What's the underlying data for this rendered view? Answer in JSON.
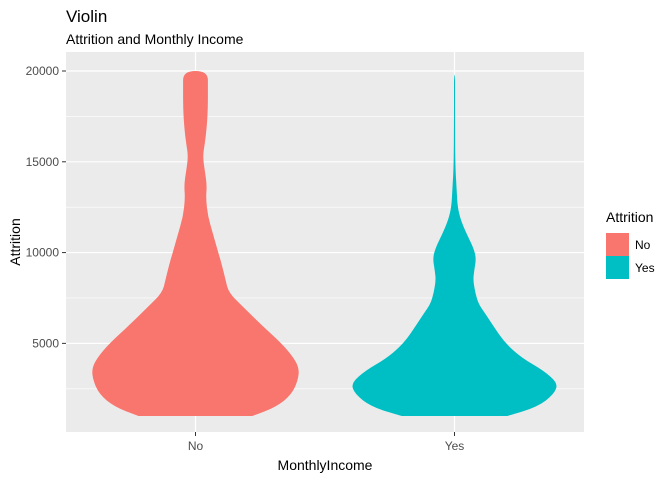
{
  "chart_data": {
    "type": "violin",
    "title": "Violin",
    "subtitle": "Attrition and Monthly Income",
    "xlabel": "MonthlyIncome",
    "ylabel": "Attrition",
    "categories": [
      "No",
      "Yes"
    ],
    "ylim": [
      0,
      20000
    ],
    "yticks": [
      5000,
      10000,
      15000,
      20000
    ],
    "grid": true,
    "legend": {
      "title": "Attrition",
      "position": "right",
      "entries": [
        {
          "label": "No",
          "color": "#F8766D"
        },
        {
          "label": "Yes",
          "color": "#00BFC4"
        }
      ]
    },
    "series": [
      {
        "category": "No",
        "color": "#F8766D",
        "density": [
          [
            1000,
            0.55
          ],
          [
            1500,
            0.78
          ],
          [
            2200,
            0.93
          ],
          [
            3000,
            0.99
          ],
          [
            3600,
            1.0
          ],
          [
            4200,
            0.95
          ],
          [
            5000,
            0.83
          ],
          [
            6000,
            0.64
          ],
          [
            7000,
            0.46
          ],
          [
            7800,
            0.32
          ],
          [
            8500,
            0.29
          ],
          [
            9200,
            0.26
          ],
          [
            10000,
            0.22
          ],
          [
            11000,
            0.17
          ],
          [
            12000,
            0.12
          ],
          [
            13000,
            0.1
          ],
          [
            13700,
            0.11
          ],
          [
            14500,
            0.09
          ],
          [
            15300,
            0.07
          ],
          [
            16000,
            0.09
          ],
          [
            17000,
            0.11
          ],
          [
            18000,
            0.12
          ],
          [
            19000,
            0.12
          ],
          [
            20000,
            0.12
          ]
        ]
      },
      {
        "category": "Yes",
        "color": "#00BFC4",
        "density": [
          [
            1000,
            0.51
          ],
          [
            1500,
            0.8
          ],
          [
            2200,
            0.96
          ],
          [
            2800,
            1.0
          ],
          [
            3500,
            0.86
          ],
          [
            4200,
            0.65
          ],
          [
            5000,
            0.49
          ],
          [
            6000,
            0.37
          ],
          [
            6700,
            0.29
          ],
          [
            7200,
            0.23
          ],
          [
            7800,
            0.2
          ],
          [
            8500,
            0.18
          ],
          [
            9000,
            0.19
          ],
          [
            9700,
            0.21
          ],
          [
            10300,
            0.18
          ],
          [
            11000,
            0.12
          ],
          [
            11800,
            0.06
          ],
          [
            12500,
            0.03
          ],
          [
            13500,
            0.02
          ],
          [
            14500,
            0.01
          ],
          [
            16000,
            0.006
          ],
          [
            17500,
            0.005
          ],
          [
            19000,
            0.005
          ],
          [
            19800,
            0.004
          ]
        ]
      }
    ]
  }
}
